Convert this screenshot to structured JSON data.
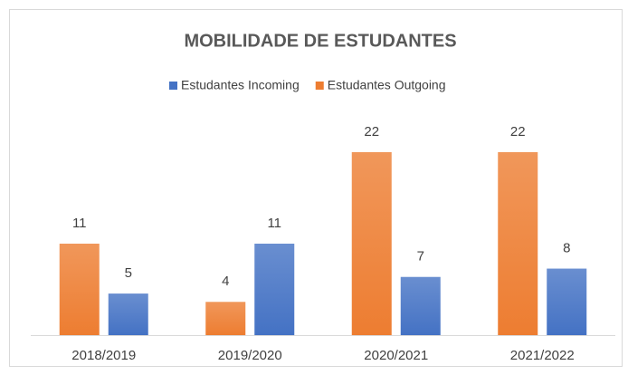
{
  "chart_data": {
    "type": "bar",
    "title": "MOBILIDADE DE ESTUDANTES",
    "categories": [
      "2018/2019",
      "2019/2020",
      "2020/2021",
      "2021/2022"
    ],
    "series": [
      {
        "name": "Estudantes Incoming",
        "color": "#4472c4",
        "values": [
          5,
          11,
          7,
          8
        ]
      },
      {
        "name": "Estudantes Outgoing",
        "color": "#ed7d31",
        "values": [
          11,
          4,
          22,
          22
        ]
      }
    ],
    "legend": "top"
  }
}
